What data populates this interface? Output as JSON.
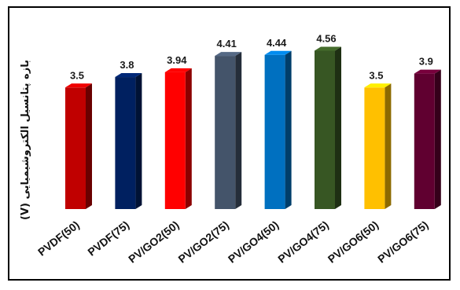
{
  "chart_data": {
    "type": "bar",
    "title": "",
    "xlabel": "",
    "ylabel": "بازه پتانسیل الکتروشیمیایی (V)",
    "categories": [
      "PVDF(50)",
      "PVDF(75)",
      "PV/GO2(50)",
      "PV/GO2(75)",
      "PV/GO4(50)",
      "PV/GO4(75)",
      "PV/GO6(50)",
      "PV/GO6(75)"
    ],
    "values": [
      3.5,
      3.8,
      3.94,
      4.41,
      4.44,
      4.56,
      3.5,
      3.9
    ],
    "value_labels": [
      "3.5",
      "3.8",
      "3.94",
      "4.41",
      "4.44",
      "4.56",
      "3.5",
      "3.9"
    ],
    "bar_colors": [
      "#c00000",
      "#002060",
      "#ff0000",
      "#44546a",
      "#0070c0",
      "#375623",
      "#ffc000",
      "#600030"
    ],
    "ylim": [
      0,
      4.8
    ],
    "grid": false,
    "legend": "none"
  }
}
